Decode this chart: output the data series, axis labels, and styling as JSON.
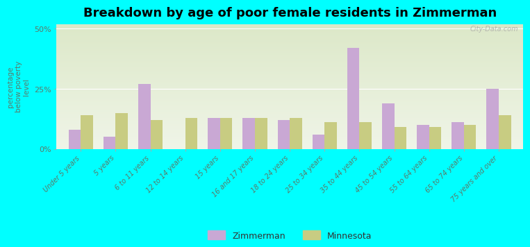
{
  "title": "Breakdown by age of poor female residents in Zimmerman",
  "ylabel": "percentage\nbelow poverty\nlevel",
  "categories": [
    "Under 5 years",
    "5 years",
    "6 to 11 years",
    "12 to 14 years",
    "15 years",
    "16 and 17 years",
    "18 to 24 years",
    "25 to 34 years",
    "35 to 44 years",
    "45 to 54 years",
    "55 to 64 years",
    "65 to 74 years",
    "75 years and over"
  ],
  "zimmerman": [
    8,
    5,
    27,
    0,
    13,
    13,
    12,
    6,
    42,
    19,
    10,
    11,
    25
  ],
  "minnesota": [
    14,
    15,
    12,
    13,
    13,
    13,
    13,
    11,
    11,
    9,
    9,
    10,
    14
  ],
  "zimmerman_color": "#c9a8d4",
  "minnesota_color": "#c8cc82",
  "ylim": [
    0,
    52
  ],
  "ytick_labels": [
    "0%",
    "25%",
    "50%"
  ],
  "background_color": "#00ffff",
  "plot_bg_top": "#dce8c8",
  "plot_bg_bottom": "#f0f5e8",
  "bar_width": 0.35,
  "title_fontsize": 13,
  "ylabel_fontsize": 7.5,
  "tick_label_color": "#5a7a6a",
  "watermark": "City-Data.com"
}
